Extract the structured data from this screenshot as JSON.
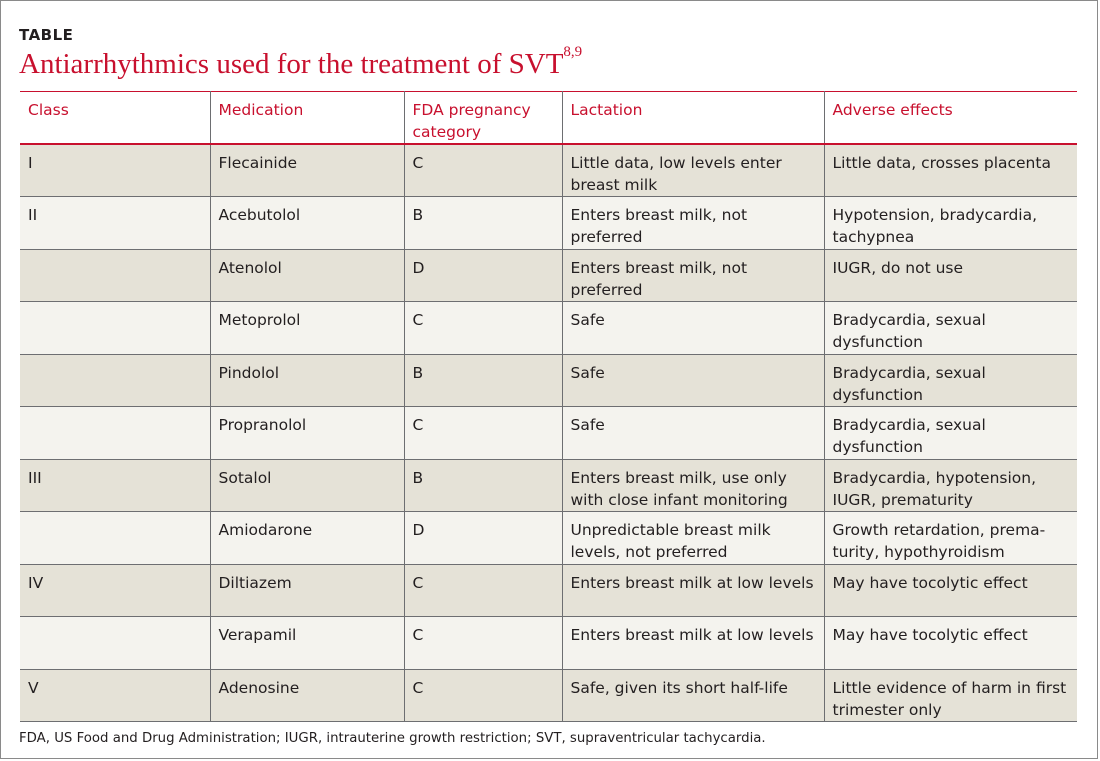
{
  "label": "TABLE",
  "title": "Antiarrhythmics used for the treatment of SVT",
  "title_refs": "8,9",
  "headers": [
    "Class",
    "Medication",
    "FDA pregnancy category",
    "Lactation",
    "Adverse effects"
  ],
  "rows": [
    [
      "I",
      "Flecainide",
      "C",
      "Little data, low levels enter breast milk",
      "Little data, crosses placenta"
    ],
    [
      "II",
      "Acebutolol",
      "B",
      "Enters breast milk, not preferred",
      "Hypotension, bradycardia, tachypnea"
    ],
    [
      "",
      "Atenolol",
      "D",
      "Enters breast milk, not preferred",
      "IUGR, do not use"
    ],
    [
      "",
      "Metoprolol",
      "C",
      "Safe",
      "Bradycardia, sexual dysfunction"
    ],
    [
      "",
      "Pindolol",
      "B",
      "Safe",
      "Bradycardia, sexual dysfunction"
    ],
    [
      "",
      "Propranolol",
      "C",
      "Safe",
      "Bradycardia, sexual dysfunction"
    ],
    [
      "III",
      "Sotalol",
      "B",
      "Enters breast milk, use only with close infant monitoring",
      "Bradycardia, hypotension, IUGR, prematurity"
    ],
    [
      "",
      "Amiodarone",
      "D",
      "Unpredictable breast milk levels, not preferred",
      "Growth retardation, prema-turity, hypothyroidism"
    ],
    [
      "IV",
      "Diltiazem",
      "C",
      "Enters breast milk at low levels",
      "May have tocolytic effect"
    ],
    [
      "",
      "Verapamil",
      "C",
      "Enters breast milk at low levels",
      "May have tocolytic effect"
    ],
    [
      "V",
      "Adenosine",
      "C",
      "Safe, given its short half-life",
      "Little evidence of harm in first trimester only"
    ]
  ],
  "footnote": "FDA, US Food and Drug Administration; IUGR, intrauterine growth restriction; SVT, supraventricular tachycardia.",
  "colors": {
    "accent": "#c8102e",
    "row_dark": "#e5e2d7",
    "row_light": "#f4f3ee"
  }
}
